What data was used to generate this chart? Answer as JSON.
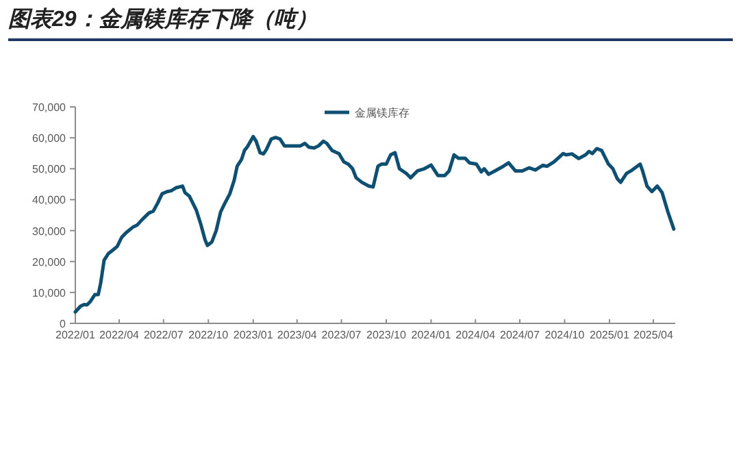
{
  "chart_data": {
    "type": "line",
    "title": "图表29：金属镁库存下降（吨）",
    "legend": "top",
    "grid": false,
    "marker": "none",
    "line_style": "solid",
    "xlim": [
      "2022-01-01",
      "2025-05-16"
    ],
    "xticks": [
      {
        "value": "2022-01-01",
        "label": "2022/01"
      },
      {
        "value": "2022-04-01",
        "label": "2022/04"
      },
      {
        "value": "2022-07-01",
        "label": "2022/07"
      },
      {
        "value": "2022-10-01",
        "label": "2022/10"
      },
      {
        "value": "2023-01-01",
        "label": "2023/01"
      },
      {
        "value": "2023-04-01",
        "label": "2023/04"
      },
      {
        "value": "2023-07-01",
        "label": "2023/07"
      },
      {
        "value": "2023-10-01",
        "label": "2023/10"
      },
      {
        "value": "2024-01-01",
        "label": "2024/01"
      },
      {
        "value": "2024-04-01",
        "label": "2024/04"
      },
      {
        "value": "2024-07-01",
        "label": "2024/07"
      },
      {
        "value": "2024-10-01",
        "label": "2024/10"
      },
      {
        "value": "2025-01-01",
        "label": "2025/01"
      },
      {
        "value": "2025-04-01",
        "label": "2025/04"
      }
    ],
    "ylim": [
      0,
      70000
    ],
    "yticks": [
      0,
      {
        "value": 10000,
        "label": "10,000"
      },
      {
        "value": 20000,
        "label": "20,000"
      },
      {
        "value": 30000,
        "label": "30,000"
      },
      {
        "value": 40000,
        "label": "40,000"
      },
      {
        "value": 50000,
        "label": "50,000"
      },
      {
        "value": 60000,
        "label": "60,000"
      },
      {
        "value": 70000,
        "label": "70,000"
      }
    ],
    "x": [
      "2022-01-01",
      "2022-01-12",
      "2022-01-19",
      "2022-01-25",
      "2022-02-01",
      "2022-02-10",
      "2022-02-17",
      "2022-02-22",
      "2022-03-01",
      "2022-03-10",
      "2022-03-19",
      "2022-03-28",
      "2022-04-06",
      "2022-04-15",
      "2022-04-29",
      "2022-05-08",
      "2022-05-19",
      "2022-06-01",
      "2022-06-10",
      "2022-06-19",
      "2022-06-28",
      "2022-07-08",
      "2022-07-17",
      "2022-07-26",
      "2022-08-09",
      "2022-08-14",
      "2022-08-23",
      "2022-09-06",
      "2022-09-15",
      "2022-09-24",
      "2022-09-29",
      "2022-10-08",
      "2022-10-17",
      "2022-10-26",
      "2022-11-04",
      "2022-11-14",
      "2022-11-23",
      "2022-11-29",
      "2022-12-08",
      "2022-12-14",
      "2022-12-20",
      "2023-01-01",
      "2023-01-07",
      "2023-01-15",
      "2023-01-22",
      "2023-01-28",
      "2023-02-07",
      "2023-02-16",
      "2023-02-25",
      "2023-03-06",
      "2023-03-20",
      "2023-04-08",
      "2023-04-17",
      "2023-04-25",
      "2023-05-06",
      "2023-05-15",
      "2023-05-25",
      "2023-06-01",
      "2023-06-12",
      "2023-06-26",
      "2023-07-06",
      "2023-07-15",
      "2023-07-24",
      "2023-07-31",
      "2023-08-12",
      "2023-08-26",
      "2023-09-04",
      "2023-09-14",
      "2023-09-21",
      "2023-10-01",
      "2023-10-10",
      "2023-10-19",
      "2023-10-28",
      "2023-11-11",
      "2023-11-20",
      "2023-12-04",
      "2023-12-18",
      "2024-01-01",
      "2024-01-15",
      "2024-01-29",
      "2024-02-07",
      "2024-02-17",
      "2024-02-26",
      "2024-03-11",
      "2024-03-20",
      "2024-04-03",
      "2024-04-13",
      "2024-04-19",
      "2024-04-28",
      "2024-05-11",
      "2024-05-25",
      "2024-06-08",
      "2024-06-22",
      "2024-07-06",
      "2024-07-20",
      "2024-08-02",
      "2024-08-17",
      "2024-08-26",
      "2024-09-09",
      "2024-09-28",
      "2024-10-04",
      "2024-10-16",
      "2024-10-30",
      "2024-11-13",
      "2024-11-20",
      "2024-11-27",
      "2024-12-06",
      "2024-12-16",
      "2024-12-30",
      "2025-01-08",
      "2025-01-17",
      "2025-01-24",
      "2025-02-05",
      "2025-02-14",
      "2025-03-05",
      "2025-03-10",
      "2025-03-19",
      "2025-03-29",
      "2025-04-09",
      "2025-04-19",
      "2025-05-01",
      "2025-05-13"
    ],
    "series": [
      {
        "name": "金属镁库存",
        "color": "#0e4f72",
        "values": [
          3700,
          5600,
          6100,
          6000,
          7100,
          9300,
          9300,
          13000,
          20400,
          22600,
          23700,
          24900,
          27800,
          29300,
          31100,
          31800,
          33700,
          35700,
          36300,
          38900,
          41900,
          42600,
          42900,
          43800,
          44400,
          42300,
          41100,
          36700,
          32300,
          27100,
          25200,
          26300,
          30000,
          36000,
          38900,
          41900,
          46300,
          50800,
          53000,
          55900,
          57100,
          60400,
          58900,
          55200,
          54800,
          56200,
          59600,
          60100,
          59600,
          57400,
          57400,
          57400,
          58200,
          57000,
          56700,
          57400,
          58900,
          58200,
          55900,
          54900,
          52200,
          51500,
          50000,
          47100,
          45600,
          44400,
          44100,
          50800,
          51500,
          51500,
          54500,
          55200,
          50000,
          48500,
          47100,
          49300,
          50000,
          51200,
          47800,
          47800,
          49300,
          54500,
          53400,
          53400,
          51900,
          51500,
          49000,
          50000,
          48200,
          49300,
          50500,
          51900,
          49300,
          49300,
          50300,
          49600,
          51100,
          50800,
          52200,
          54900,
          54500,
          54800,
          53300,
          54500,
          55600,
          54900,
          56500,
          55900,
          51500,
          50000,
          46800,
          45600,
          48500,
          49300,
          51500,
          49300,
          44400,
          42600,
          44400,
          42300,
          36000,
          30500
        ]
      }
    ]
  }
}
